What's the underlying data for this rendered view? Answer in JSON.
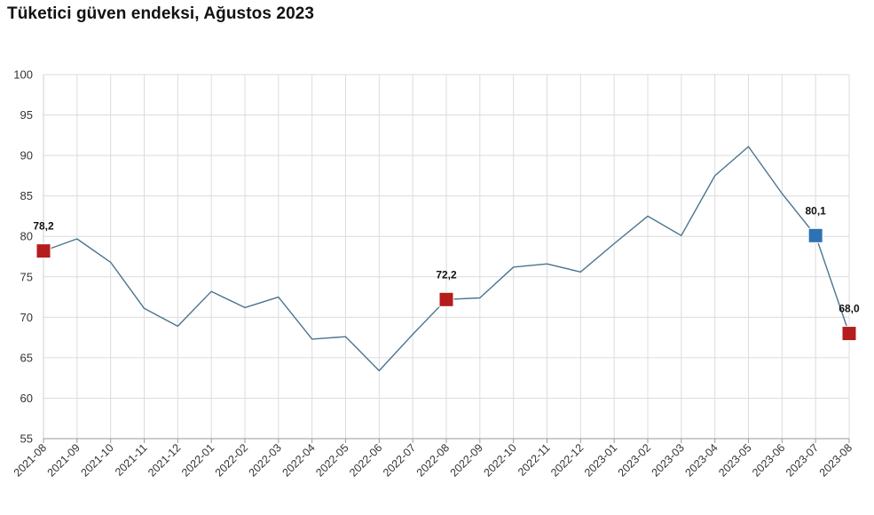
{
  "title": "Tüketici güven endeksi, Ağustos 2023",
  "chart_data": {
    "type": "line",
    "title": "Tüketici güven endeksi, Ağustos 2023",
    "xlabel": "",
    "ylabel": "",
    "ylim": [
      55,
      100
    ],
    "yticks": [
      55,
      60,
      65,
      70,
      75,
      80,
      85,
      90,
      95,
      100
    ],
    "grid": true,
    "categories": [
      "2021-08",
      "2021-09",
      "2021-10",
      "2021-11",
      "2021-12",
      "2022-01",
      "2022-02",
      "2022-03",
      "2022-04",
      "2022-05",
      "2022-06",
      "2022-07",
      "2022-08",
      "2022-09",
      "2022-10",
      "2022-11",
      "2022-12",
      "2023-01",
      "2023-02",
      "2023-03",
      "2023-04",
      "2023-05",
      "2023-06",
      "2023-07",
      "2023-08"
    ],
    "values": [
      78.2,
      79.7,
      76.8,
      71.1,
      68.9,
      73.2,
      71.2,
      72.5,
      67.3,
      67.6,
      63.4,
      67.9,
      72.2,
      72.4,
      76.2,
      76.6,
      75.6,
      79.1,
      82.5,
      80.1,
      87.5,
      91.1,
      85.3,
      80.1,
      68.0
    ],
    "line_color": "#4a7590",
    "highlights": [
      {
        "index": 0,
        "label": "78,2",
        "color": "#b51c1c"
      },
      {
        "index": 12,
        "label": "72,2",
        "color": "#b51c1c"
      },
      {
        "index": 23,
        "label": "80,1",
        "color": "#2f72b3"
      },
      {
        "index": 24,
        "label": "68,0",
        "color": "#b51c1c"
      }
    ]
  }
}
